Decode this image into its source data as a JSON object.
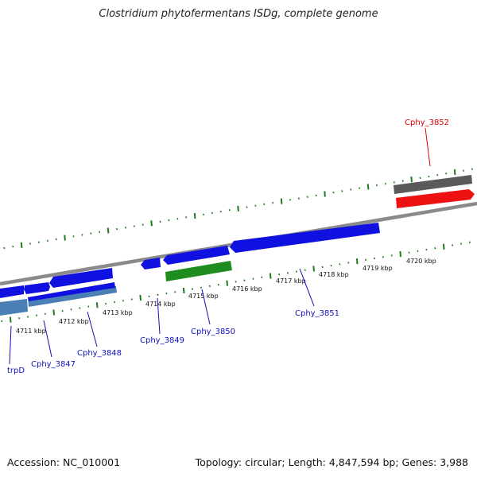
{
  "title": "Clostridium phytofermentans ISDg, complete genome",
  "footer": {
    "accession": "Accession: NC_010001",
    "topology": "Topology: circular; Length: 4,847,594 bp; Genes: 3,988"
  },
  "colors": {
    "backbone": "#8a8a8a",
    "tick": "#1f7a1f",
    "gene_forward": "#1010e0",
    "gene_reverse_blue": "#1010e0",
    "gene_steelblue": "#4a7fb5",
    "gene_green": "#1e8c1e",
    "gene_gray": "#5a5a5a",
    "gene_red": "#ee1111",
    "label_blue": "#1010c0",
    "label_red": "#dd0000"
  },
  "scale": {
    "unit": "kbp",
    "tick_labels": [
      "4711 kbp",
      "4712 kbp",
      "4713 kbp",
      "4714 kbp",
      "4715 kbp",
      "4716 kbp",
      "4717 kbp",
      "4718 kbp",
      "4719 kbp",
      "4720 kbp"
    ]
  },
  "gene_labels": [
    {
      "name": "trpD",
      "color": "label_blue"
    },
    {
      "name": "Cphy_3847",
      "color": "label_blue"
    },
    {
      "name": "Cphy_3848",
      "color": "label_blue"
    },
    {
      "name": "Cphy_3849",
      "color": "label_blue"
    },
    {
      "name": "Cphy_3850",
      "color": "label_blue"
    },
    {
      "name": "Cphy_3851",
      "color": "label_blue"
    },
    {
      "name": "Cphy_3852",
      "color": "label_red"
    }
  ]
}
